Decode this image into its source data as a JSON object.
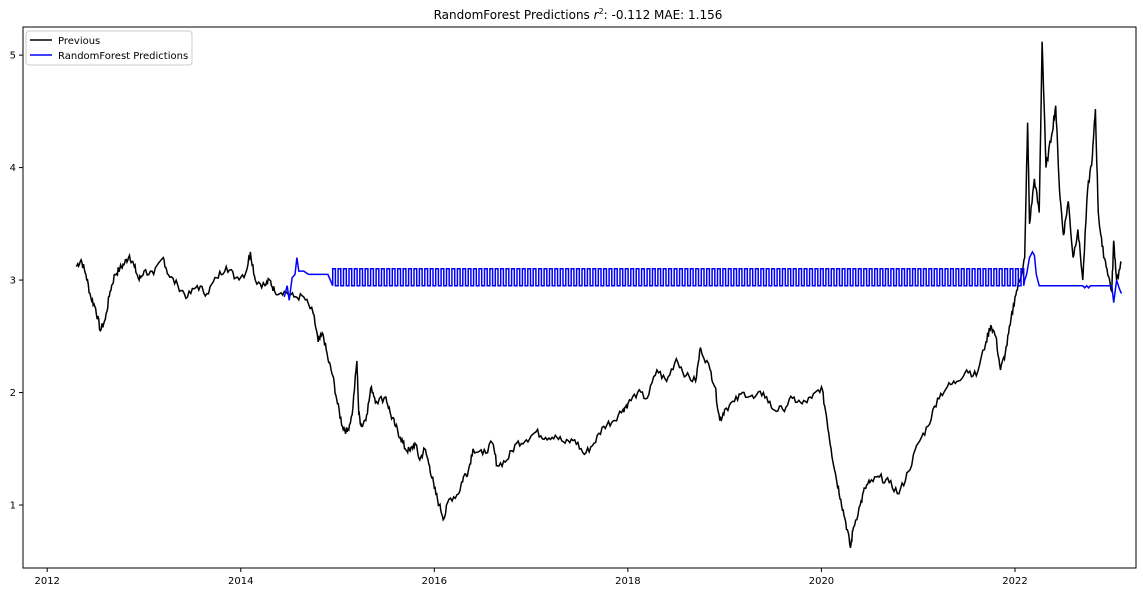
{
  "chart_data": {
    "type": "line",
    "title": "RandomForest Predictions",
    "title_super": "2",
    "title_tail": ": -0.112 MAE: 1.156",
    "title_r": "r",
    "xlabel": "",
    "ylabel": "",
    "xlim": [
      2011.75,
      2023.25
    ],
    "ylim": [
      0.44,
      5.25
    ],
    "x_ticks": [
      "2012",
      "2014",
      "2016",
      "2018",
      "2020",
      "2022"
    ],
    "y_ticks": [
      "1",
      "2",
      "3",
      "4",
      "5"
    ],
    "legend_position": "upper-left",
    "grid": false,
    "series": [
      {
        "name": "Previous",
        "color": "#000000",
        "points": [
          [
            2012.3,
            3.12
          ],
          [
            2012.35,
            3.18
          ],
          [
            2012.4,
            3.05
          ],
          [
            2012.45,
            2.85
          ],
          [
            2012.5,
            2.75
          ],
          [
            2012.55,
            2.55
          ],
          [
            2012.6,
            2.65
          ],
          [
            2012.65,
            2.9
          ],
          [
            2012.7,
            3.05
          ],
          [
            2012.75,
            3.1
          ],
          [
            2012.8,
            3.15
          ],
          [
            2012.85,
            3.22
          ],
          [
            2012.9,
            3.12
          ],
          [
            2012.95,
            3.0
          ],
          [
            2013.0,
            3.08
          ],
          [
            2013.1,
            3.05
          ],
          [
            2013.2,
            3.2
          ],
          [
            2013.25,
            3.05
          ],
          [
            2013.35,
            2.95
          ],
          [
            2013.45,
            2.85
          ],
          [
            2013.55,
            2.95
          ],
          [
            2013.65,
            2.88
          ],
          [
            2013.75,
            3.02
          ],
          [
            2013.85,
            3.12
          ],
          [
            2013.95,
            3.02
          ],
          [
            2014.05,
            3.06
          ],
          [
            2014.1,
            3.25
          ],
          [
            2014.15,
            3.0
          ],
          [
            2014.25,
            2.95
          ],
          [
            2014.3,
            3.0
          ],
          [
            2014.35,
            2.9
          ],
          [
            2014.45,
            2.9
          ],
          [
            2014.55,
            2.85
          ],
          [
            2014.65,
            2.85
          ],
          [
            2014.75,
            2.7
          ],
          [
            2014.8,
            2.45
          ],
          [
            2014.85,
            2.52
          ],
          [
            2014.9,
            2.3
          ],
          [
            2014.95,
            2.15
          ],
          [
            2015.0,
            1.9
          ],
          [
            2015.05,
            1.7
          ],
          [
            2015.1,
            1.65
          ],
          [
            2015.15,
            1.8
          ],
          [
            2015.2,
            2.28
          ],
          [
            2015.22,
            1.8
          ],
          [
            2015.25,
            1.7
          ],
          [
            2015.3,
            1.8
          ],
          [
            2015.35,
            2.05
          ],
          [
            2015.4,
            1.92
          ],
          [
            2015.5,
            1.96
          ],
          [
            2015.55,
            1.8
          ],
          [
            2015.6,
            1.7
          ],
          [
            2015.65,
            1.6
          ],
          [
            2015.7,
            1.5
          ],
          [
            2015.75,
            1.48
          ],
          [
            2015.8,
            1.55
          ],
          [
            2015.85,
            1.4
          ],
          [
            2015.9,
            1.5
          ],
          [
            2015.95,
            1.35
          ],
          [
            2016.0,
            1.15
          ],
          [
            2016.05,
            1.0
          ],
          [
            2016.1,
            0.88
          ],
          [
            2016.15,
            1.05
          ],
          [
            2016.25,
            1.1
          ],
          [
            2016.3,
            1.25
          ],
          [
            2016.35,
            1.3
          ],
          [
            2016.4,
            1.5
          ],
          [
            2016.5,
            1.45
          ],
          [
            2016.6,
            1.55
          ],
          [
            2016.65,
            1.35
          ],
          [
            2016.75,
            1.4
          ],
          [
            2016.85,
            1.55
          ],
          [
            2016.95,
            1.58
          ],
          [
            2017.05,
            1.65
          ],
          [
            2017.15,
            1.6
          ],
          [
            2017.25,
            1.62
          ],
          [
            2017.35,
            1.55
          ],
          [
            2017.45,
            1.58
          ],
          [
            2017.55,
            1.45
          ],
          [
            2017.65,
            1.55
          ],
          [
            2017.75,
            1.7
          ],
          [
            2017.85,
            1.75
          ],
          [
            2017.95,
            1.85
          ],
          [
            2018.0,
            1.9
          ],
          [
            2018.1,
            2.0
          ],
          [
            2018.2,
            1.95
          ],
          [
            2018.3,
            2.2
          ],
          [
            2018.4,
            2.1
          ],
          [
            2018.5,
            2.3
          ],
          [
            2018.6,
            2.15
          ],
          [
            2018.7,
            2.1
          ],
          [
            2018.75,
            2.4
          ],
          [
            2018.85,
            2.2
          ],
          [
            2018.9,
            2.05
          ],
          [
            2018.95,
            1.75
          ],
          [
            2019.0,
            1.85
          ],
          [
            2019.1,
            1.92
          ],
          [
            2019.2,
            2.0
          ],
          [
            2019.3,
            1.95
          ],
          [
            2019.4,
            2.0
          ],
          [
            2019.5,
            1.85
          ],
          [
            2019.6,
            1.85
          ],
          [
            2019.7,
            1.95
          ],
          [
            2019.8,
            1.9
          ],
          [
            2019.9,
            1.95
          ],
          [
            2020.0,
            2.05
          ],
          [
            2020.05,
            1.8
          ],
          [
            2020.1,
            1.5
          ],
          [
            2020.15,
            1.25
          ],
          [
            2020.2,
            1.05
          ],
          [
            2020.25,
            0.85
          ],
          [
            2020.3,
            0.62
          ],
          [
            2020.33,
            0.8
          ],
          [
            2020.4,
            1.0
          ],
          [
            2020.45,
            1.15
          ],
          [
            2020.5,
            1.2
          ],
          [
            2020.6,
            1.25
          ],
          [
            2020.7,
            1.2
          ],
          [
            2020.8,
            1.1
          ],
          [
            2020.9,
            1.3
          ],
          [
            2021.0,
            1.55
          ],
          [
            2021.1,
            1.7
          ],
          [
            2021.2,
            1.95
          ],
          [
            2021.3,
            2.05
          ],
          [
            2021.4,
            2.1
          ],
          [
            2021.5,
            2.2
          ],
          [
            2021.6,
            2.15
          ],
          [
            2021.7,
            2.45
          ],
          [
            2021.75,
            2.6
          ],
          [
            2021.8,
            2.5
          ],
          [
            2021.85,
            2.2
          ],
          [
            2021.9,
            2.35
          ],
          [
            2021.95,
            2.6
          ],
          [
            2022.0,
            2.85
          ],
          [
            2022.05,
            3.0
          ],
          [
            2022.1,
            3.2
          ],
          [
            2022.13,
            4.4
          ],
          [
            2022.15,
            3.5
          ],
          [
            2022.2,
            3.9
          ],
          [
            2022.25,
            3.6
          ],
          [
            2022.28,
            5.12
          ],
          [
            2022.32,
            4.0
          ],
          [
            2022.38,
            4.3
          ],
          [
            2022.42,
            4.55
          ],
          [
            2022.46,
            3.8
          ],
          [
            2022.5,
            3.4
          ],
          [
            2022.55,
            3.7
          ],
          [
            2022.6,
            3.2
          ],
          [
            2022.65,
            3.45
          ],
          [
            2022.7,
            3.0
          ],
          [
            2022.75,
            3.8
          ],
          [
            2022.8,
            4.1
          ],
          [
            2022.83,
            4.52
          ],
          [
            2022.86,
            3.6
          ],
          [
            2022.9,
            3.3
          ],
          [
            2022.95,
            3.1
          ],
          [
            2023.0,
            2.9
          ],
          [
            2023.02,
            3.35
          ],
          [
            2023.05,
            3.0
          ],
          [
            2023.1,
            3.15
          ]
        ]
      },
      {
        "name": "RandomForest Predictions",
        "color": "#0000ff",
        "low": 2.95,
        "high": 3.1,
        "osc_start": 2014.95,
        "osc_end": 2022.1,
        "osc_step": 0.028,
        "points_head": [
          [
            2014.45,
            2.85
          ],
          [
            2014.48,
            2.95
          ],
          [
            2014.5,
            2.82
          ],
          [
            2014.53,
            3.02
          ],
          [
            2014.56,
            3.05
          ],
          [
            2014.58,
            3.2
          ],
          [
            2014.6,
            3.08
          ],
          [
            2014.65,
            3.08
          ],
          [
            2014.7,
            3.05
          ],
          [
            2014.9,
            3.05
          ],
          [
            2014.95,
            2.95
          ]
        ],
        "points_tail": [
          [
            2022.1,
            3.0
          ],
          [
            2022.12,
            3.05
          ],
          [
            2022.15,
            3.2
          ],
          [
            2022.18,
            3.25
          ],
          [
            2022.2,
            3.22
          ],
          [
            2022.22,
            3.05
          ],
          [
            2022.25,
            2.95
          ],
          [
            2022.7,
            2.95
          ],
          [
            2022.72,
            2.93
          ],
          [
            2022.74,
            2.95
          ],
          [
            2022.76,
            2.93
          ],
          [
            2022.78,
            2.95
          ],
          [
            2023.0,
            2.95
          ],
          [
            2023.02,
            2.8
          ],
          [
            2023.05,
            3.0
          ],
          [
            2023.08,
            2.92
          ],
          [
            2023.1,
            2.88
          ]
        ]
      }
    ]
  }
}
